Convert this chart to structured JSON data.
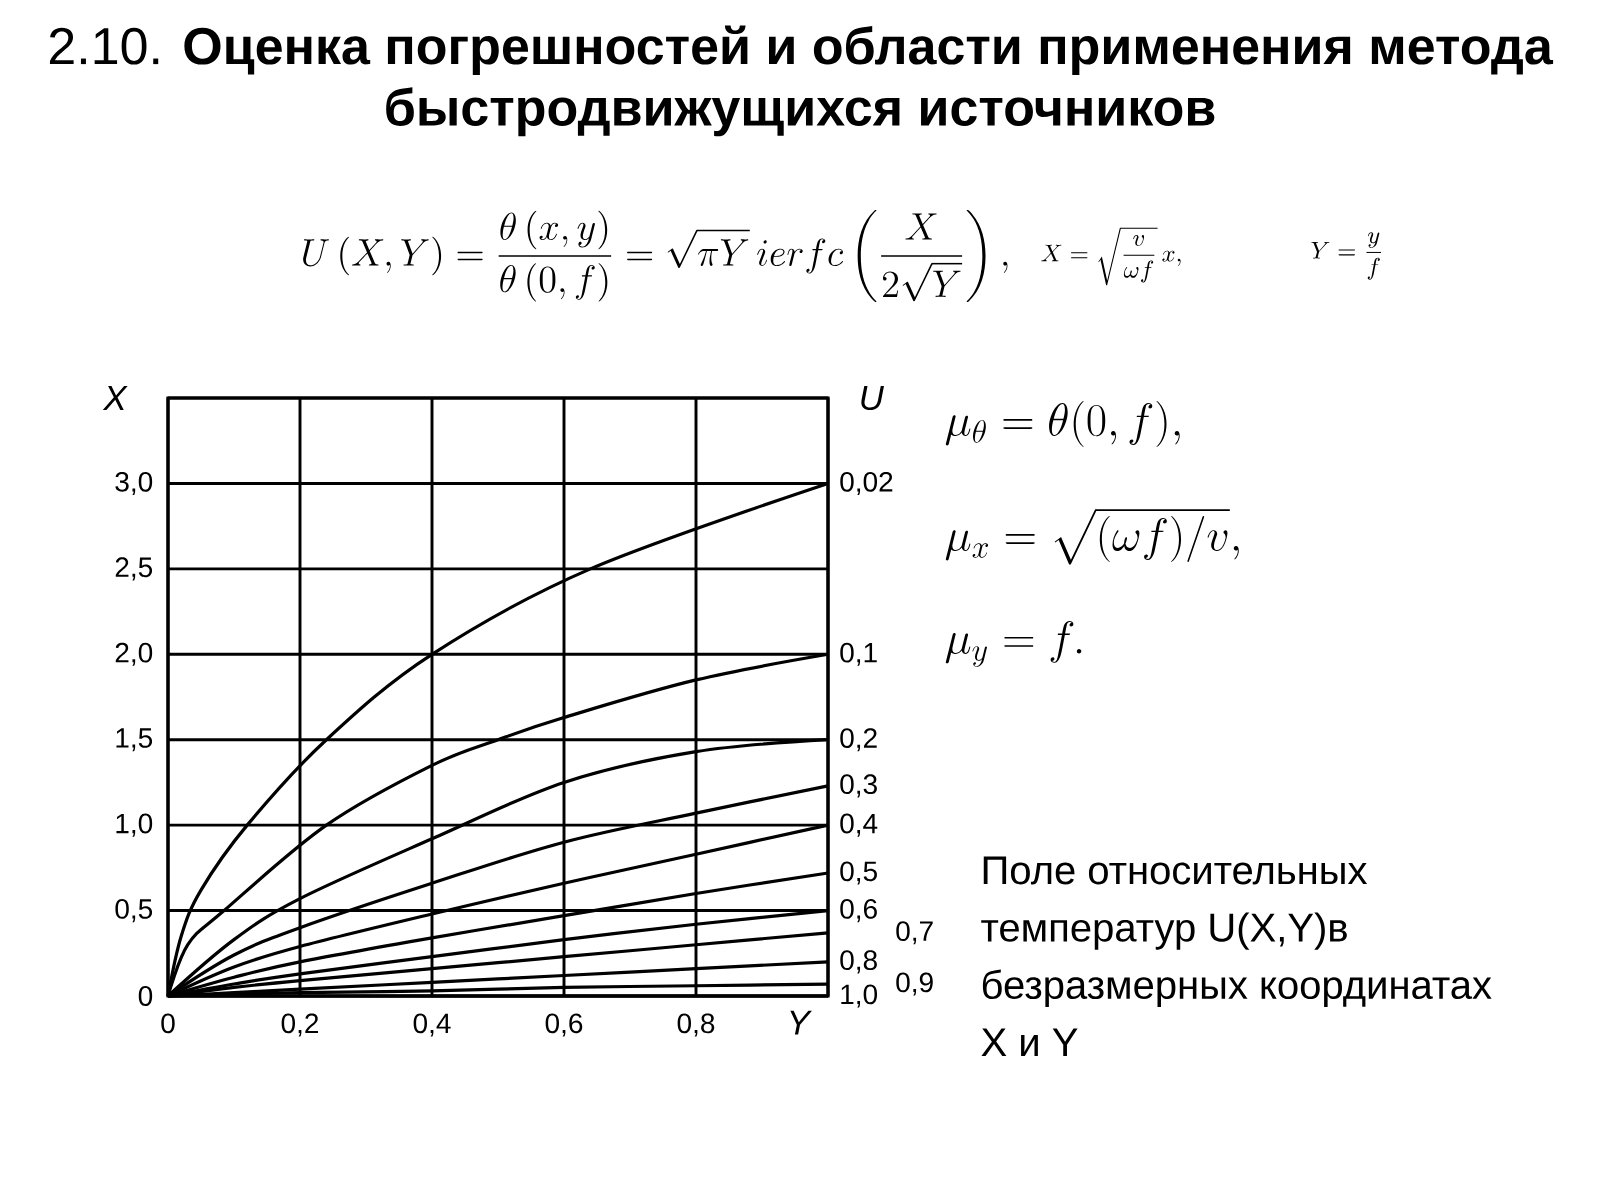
{
  "chart_data": {
    "type": "line",
    "title": "2.10. **Оценка погрешностей и области применения метода быстродвижущихся источников**",
    "xlabel": "Y",
    "ylabel": "X",
    "legend_title": "U",
    "xlim": [
      0,
      1.0
    ],
    "ylim": [
      0,
      3.5
    ],
    "xticks": [
      {
        "value": 0,
        "label": "0"
      },
      {
        "value": 0.2,
        "label": "0,2"
      },
      {
        "value": 0.4,
        "label": "0,4"
      },
      {
        "value": 0.6,
        "label": "0,6"
      },
      {
        "value": 0.8,
        "label": "0,8"
      },
      {
        "value": 1.0,
        "label": null
      }
    ],
    "yticks": [
      {
        "value": 0,
        "label": "0"
      },
      {
        "value": 0.5,
        "label": "0,5"
      },
      {
        "value": 1.0,
        "label": "1,0"
      },
      {
        "value": 1.5,
        "label": "1,5"
      },
      {
        "value": 2.0,
        "label": "2,0"
      },
      {
        "value": 2.5,
        "label": "2,5"
      },
      {
        "value": 3.0,
        "label": "3,0"
      },
      {
        "value": 3.5,
        "label": null
      }
    ],
    "grid": true,
    "line_style": "solid",
    "series": [
      {
        "name": "0,02",
        "color": "#000000",
        "x": [
          0,
          0.02,
          0.05,
          0.12,
          0.24,
          0.4,
          0.64,
          1.0
        ],
        "values": [
          0,
          0.35,
          0.62,
          1.0,
          1.5,
          2.0,
          2.5,
          3.0
        ]
      },
      {
        "name": "0,1",
        "color": "#000000",
        "x": [
          0,
          0.03,
          0.085,
          0.24,
          0.4,
          0.5,
          0.6,
          0.8,
          1.0
        ],
        "values": [
          0,
          0.3,
          0.5,
          1.0,
          1.35,
          1.5,
          1.63,
          1.85,
          2.0
        ]
      },
      {
        "name": "0,2",
        "color": "#000000",
        "x": [
          0,
          0.1,
          0.2,
          0.4,
          0.6,
          0.8,
          1.0
        ],
        "values": [
          0,
          0.33,
          0.57,
          0.92,
          1.25,
          1.43,
          1.5
        ]
      },
      {
        "name": "0,3",
        "color": "#000000",
        "x": [
          0,
          0.1,
          0.2,
          0.4,
          0.6,
          0.8,
          1.0
        ],
        "values": [
          0,
          0.24,
          0.4,
          0.66,
          0.9,
          1.07,
          1.23
        ]
      },
      {
        "name": "0,4",
        "color": "#000000",
        "x": [
          0,
          0.1,
          0.2,
          0.4,
          0.6,
          0.8,
          1.0
        ],
        "values": [
          0,
          0.17,
          0.29,
          0.48,
          0.66,
          0.83,
          1.0
        ]
      },
      {
        "name": "0,5",
        "color": "#000000",
        "x": [
          0,
          0.1,
          0.2,
          0.4,
          0.6,
          0.8,
          1.0
        ],
        "values": [
          0,
          0.11,
          0.2,
          0.34,
          0.47,
          0.6,
          0.72
        ]
      },
      {
        "name": "0,6",
        "color": "#000000",
        "x": [
          0,
          0.1,
          0.2,
          0.4,
          0.6,
          0.8,
          1.0
        ],
        "values": [
          0,
          0.07,
          0.13,
          0.23,
          0.33,
          0.42,
          0.5
        ]
      },
      {
        "name": "0,7",
        "color": "#000000",
        "x": [
          0,
          0.1,
          0.2,
          0.4,
          0.6,
          0.8,
          1.0
        ],
        "values": [
          0,
          0.05,
          0.09,
          0.16,
          0.23,
          0.3,
          0.37
        ]
      },
      {
        "name": "0,8",
        "color": "#000000",
        "x": [
          0,
          0.1,
          0.2,
          0.4,
          0.6,
          0.8,
          1.0
        ],
        "values": [
          0,
          0.02,
          0.04,
          0.08,
          0.12,
          0.16,
          0.2
        ]
      },
      {
        "name": "0,9",
        "color": "#000000",
        "x": [
          0,
          0.1,
          0.2,
          0.4,
          0.6,
          0.8,
          1.0
        ],
        "values": [
          0,
          0.01,
          0.02,
          0.03,
          0.05,
          0.06,
          0.07
        ]
      },
      {
        "name": "1,0",
        "color": "#000000",
        "x": [
          0,
          1.0
        ],
        "values": [
          0,
          0
        ]
      }
    ],
    "annotations": [
      "U\\left(X,Y\\right)=\\frac{\\theta\\left(x,y\\right)}{\\theta\\left(0,f\\right)}=\\sqrt{\\pi Y}\\,ierfc\\left(\\frac{X}{2\\sqrt{Y}}\\right),",
      "X=\\sqrt{\\frac{v}{\\omega f}}\\,x,",
      "Y=\\frac{y}{f}",
      "\\mu_\\theta=\\theta(0,f),",
      "\\mu_x=\\sqrt{(\\omega f)/v},",
      "\\mu_y=f.",
      "Поле относительных температур U(X,Y)в безразмерных координатах X и Y"
    ]
  }
}
